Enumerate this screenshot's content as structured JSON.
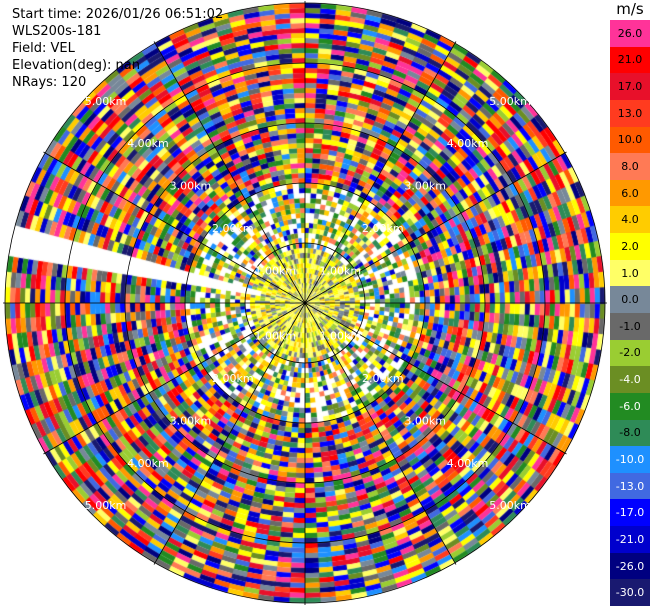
{
  "info": {
    "start_time": "Start time: 2026/01/26 06:51:02",
    "instrument": "WLS200s-181",
    "field": "Field: VEL",
    "elevation": "Elevation(deg): nan",
    "nrays": "NRays: 120"
  },
  "colorbar": {
    "units": "m/s",
    "entries": [
      {
        "label": "26.0",
        "color": "#ff3399"
      },
      {
        "label": "21.0",
        "color": "#ff0000"
      },
      {
        "label": "17.0",
        "color": "#e8102a"
      },
      {
        "label": "13.0",
        "color": "#ff3b1f"
      },
      {
        "label": "10.0",
        "color": "#ff5a00"
      },
      {
        "label": "8.0",
        "color": "#ff7a55"
      },
      {
        "label": "6.0",
        "color": "#ff9900"
      },
      {
        "label": "4.0",
        "color": "#ffcc00"
      },
      {
        "label": "2.0",
        "color": "#ffff00"
      },
      {
        "label": "1.0",
        "color": "#ffff66"
      },
      {
        "label": "0.0",
        "color": "#778899"
      },
      {
        "label": "-1.0",
        "color": "#696969"
      },
      {
        "label": "-2.0",
        "color": "#9acd32"
      },
      {
        "label": "-4.0",
        "color": "#6b8e23"
      },
      {
        "label": "-6.0",
        "color": "#228b22"
      },
      {
        "label": "-8.0",
        "color": "#2e8b57"
      },
      {
        "label": "-10.0",
        "color": "#1e90ff"
      },
      {
        "label": "-13.0",
        "color": "#4169e1"
      },
      {
        "label": "-17.0",
        "color": "#0000ff"
      },
      {
        "label": "-21.0",
        "color": "#0000cd"
      },
      {
        "label": "-26.0",
        "color": "#000080"
      },
      {
        "label": "-30.0",
        "color": "#191970"
      }
    ]
  },
  "ring_labels": [
    "1.00km",
    "2.00km",
    "3.00km",
    "4.00km",
    "5.00km"
  ],
  "velocity_palette": [
    "#ff3399",
    "#ff0000",
    "#e8102a",
    "#ff3b1f",
    "#ff5a00",
    "#ff7a55",
    "#ff9900",
    "#ffcc00",
    "#ffff00",
    "#ffff66",
    "#778899",
    "#696969",
    "#9acd32",
    "#6b8e23",
    "#228b22",
    "#2e8b57",
    "#1e90ff",
    "#4169e1",
    "#0000ff",
    "#0000cd",
    "#000080",
    "#191970"
  ]
}
